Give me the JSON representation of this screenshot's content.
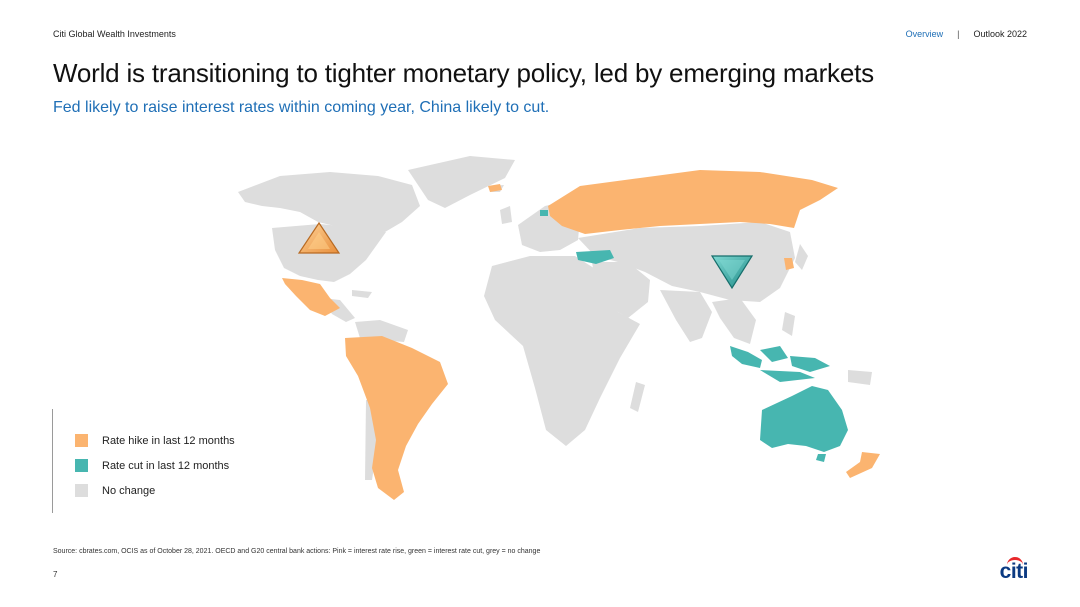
{
  "header": {
    "brand": "Citi Global Wealth Investments",
    "nav": {
      "active": "Overview",
      "separator": "|",
      "item": "Outlook 2022"
    }
  },
  "title": "World is transitioning to tighter monetary policy, led by emerging markets",
  "subtitle": "Fed likely to raise interest rates within coming year, China likely to cut.",
  "map": {
    "colors": {
      "hike": "#fbb470",
      "cut": "#47b6b0",
      "none": "#dddddd"
    },
    "hike_countries": [
      "United States (expected)",
      "Mexico",
      "Brazil",
      "South America",
      "Russia",
      "Korea",
      "New Zealand"
    ],
    "cut_countries": [
      "China (expected)",
      "Turkey",
      "Indonesia",
      "Australia"
    ],
    "markers": [
      {
        "name": "united-states",
        "direction": "up",
        "color": "#f2a65a"
      },
      {
        "name": "china",
        "direction": "down",
        "color": "#2fa6a2"
      }
    ]
  },
  "legend": [
    {
      "label": "Rate hike in last 12 months",
      "color": "#fbb470"
    },
    {
      "label": "Rate cut in last 12 months",
      "color": "#47b6b0"
    },
    {
      "label": "No change",
      "color": "#dddddd"
    }
  ],
  "footer": {
    "source": "Source: cbrates.com, OCIS as of October 28, 2021. OECD and G20 central bank actions: Pink = interest rate rise, green = interest rate cut, grey = no change",
    "page_number": "7",
    "logo": "citi"
  }
}
